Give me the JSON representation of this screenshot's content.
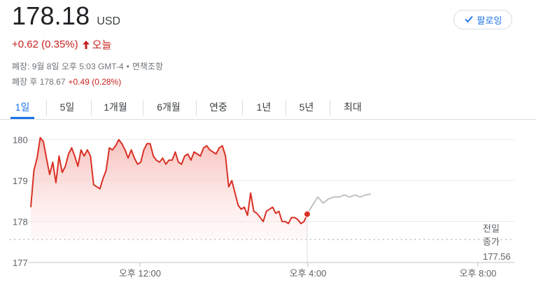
{
  "quote": {
    "price": "178.18",
    "currency": "USD",
    "change": "+0.62 (0.35%)",
    "change_period": "오늘",
    "market_status": "폐장: 9월 8일 오후 5:03 GMT-4",
    "disclaimer_link": "면책조항",
    "after_hours_label": "폐장 후 178.67",
    "after_hours_change": "+0.49 (0.28%)"
  },
  "follow_button": {
    "label": "팔로잉",
    "icon": "check-icon"
  },
  "tabs": [
    {
      "label": "1일",
      "active": true
    },
    {
      "label": "5일",
      "active": false
    },
    {
      "label": "1개월",
      "active": false
    },
    {
      "label": "6개월",
      "active": false
    },
    {
      "label": "연중",
      "active": false
    },
    {
      "label": "1년",
      "active": false
    },
    {
      "label": "5년",
      "active": false
    },
    {
      "label": "최대",
      "active": false
    }
  ],
  "colors": {
    "accent": "#1a73e8",
    "down_red": "#c5221f",
    "line_red": "#d93025",
    "after_hours_gray": "#bdc1c6"
  },
  "chart_data": {
    "type": "line",
    "yticks": [
      "180",
      "179",
      "178",
      "177"
    ],
    "ylim": [
      177,
      180.2
    ],
    "xticks": [
      "오후 12:00",
      "오후 4:00",
      "오후 8:00"
    ],
    "previous_close": {
      "label_line1": "전일",
      "label_line2": "종가",
      "value": "177.56"
    },
    "series": [
      {
        "segment": "regular",
        "values": [
          178.35,
          179.25,
          179.55,
          180.05,
          179.95,
          179.55,
          179.15,
          179.45,
          178.95,
          179.6,
          179.2,
          179.35,
          179.65,
          179.8,
          179.6,
          179.35,
          179.75,
          179.6,
          179.75,
          179.6,
          178.9,
          178.85,
          178.8,
          179.05,
          179.25,
          179.8,
          179.75,
          179.85,
          180.0,
          179.9,
          179.75,
          179.55,
          179.75,
          179.55,
          179.4,
          179.45,
          179.75,
          179.9,
          179.9,
          179.6,
          179.5,
          179.45,
          179.55,
          179.4,
          179.5,
          179.5,
          179.7,
          179.45,
          179.4,
          179.6,
          179.65,
          179.5,
          179.7,
          179.65,
          179.6,
          179.8,
          179.85,
          179.75,
          179.7,
          179.65,
          179.8,
          179.85,
          179.6,
          178.85,
          179.0,
          178.7,
          178.4,
          178.3,
          178.35,
          178.15,
          178.7,
          178.25,
          178.2,
          178.1,
          178.0,
          178.25,
          178.3,
          178.35,
          178.2,
          178.25,
          178.0,
          178.0,
          177.95,
          178.1,
          178.1,
          178.05,
          177.95,
          178.0,
          178.18
        ]
      },
      {
        "segment": "after_hours",
        "values": [
          178.18,
          178.4,
          178.6,
          178.45,
          178.55,
          178.6,
          178.6,
          178.65,
          178.6,
          178.65,
          178.6,
          178.65,
          178.67
        ]
      }
    ]
  }
}
